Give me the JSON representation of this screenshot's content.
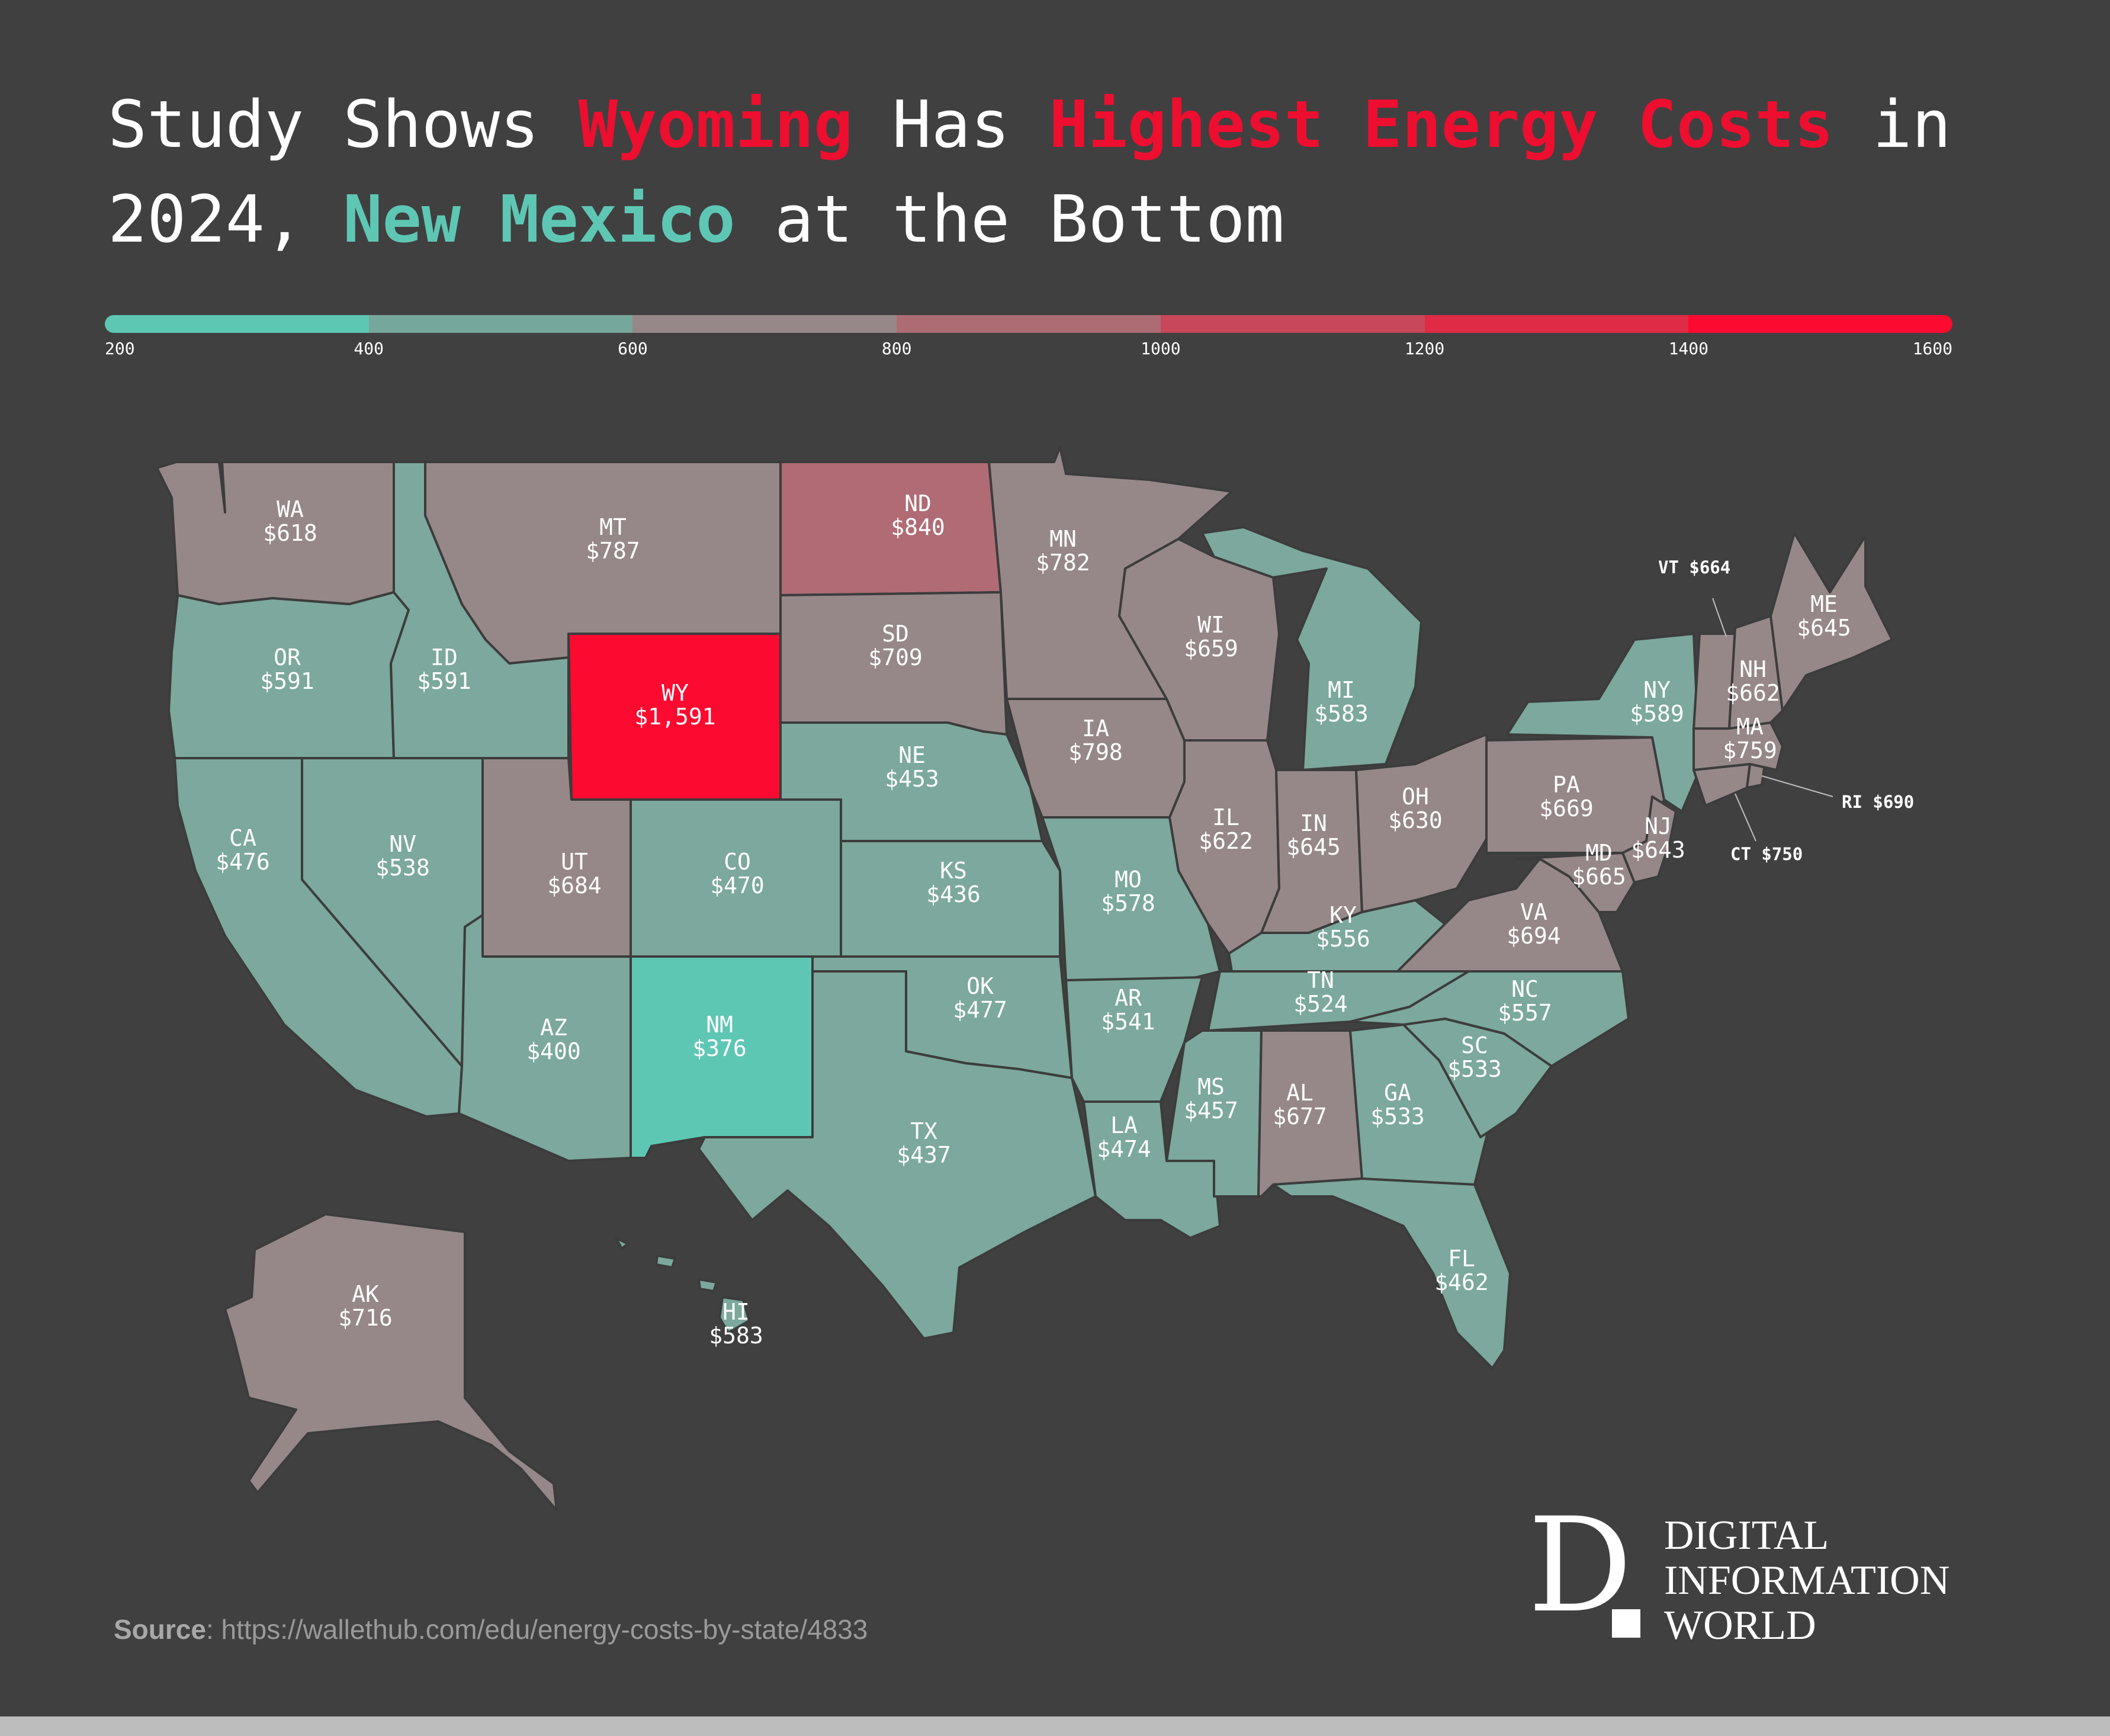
{
  "title": {
    "line1_a": "Study Shows ",
    "line1_b": "Wyoming",
    "line1_c": " Has ",
    "line1_d": "Highest Energy Costs",
    "line1_e": " in",
    "line2_a": "2024, ",
    "line2_b": "New Mexico",
    "line2_c": " at the Bottom"
  },
  "legend": {
    "ticks": [
      "200",
      "400",
      "600",
      "800",
      "1000",
      "1200",
      "1400",
      "1600"
    ],
    "colors": [
      "#5ec7b4",
      "#76a79c",
      "#968888",
      "#ad6b74",
      "#c8475a",
      "#df2b45",
      "#fc0a30"
    ]
  },
  "map": {
    "fill_colors": {
      "200-400": "#5ec7b4",
      "400-600": "#7ca89d",
      "600-800": "#968888",
      "800-1000": "#b06b74",
      "1400-1600": "#fc0a30"
    },
    "states": [
      {
        "code": "WA",
        "value": "$618"
      },
      {
        "code": "OR",
        "value": "$591"
      },
      {
        "code": "CA",
        "value": "$476"
      },
      {
        "code": "ID",
        "value": "$591"
      },
      {
        "code": "NV",
        "value": "$538"
      },
      {
        "code": "MT",
        "value": "$787"
      },
      {
        "code": "WY",
        "value": "$1,591"
      },
      {
        "code": "UT",
        "value": "$684"
      },
      {
        "code": "AZ",
        "value": "$400"
      },
      {
        "code": "CO",
        "value": "$470"
      },
      {
        "code": "NM",
        "value": "$376"
      },
      {
        "code": "ND",
        "value": "$840"
      },
      {
        "code": "SD",
        "value": "$709"
      },
      {
        "code": "NE",
        "value": "$453"
      },
      {
        "code": "KS",
        "value": "$436"
      },
      {
        "code": "OK",
        "value": "$477"
      },
      {
        "code": "TX",
        "value": "$437"
      },
      {
        "code": "MN",
        "value": "$782"
      },
      {
        "code": "IA",
        "value": "$798"
      },
      {
        "code": "MO",
        "value": "$578"
      },
      {
        "code": "AR",
        "value": "$541"
      },
      {
        "code": "LA",
        "value": "$474"
      },
      {
        "code": "WI",
        "value": "$659"
      },
      {
        "code": "IL",
        "value": "$622"
      },
      {
        "code": "MI",
        "value": "$583"
      },
      {
        "code": "IN",
        "value": "$645"
      },
      {
        "code": "OH",
        "value": "$630"
      },
      {
        "code": "KY",
        "value": "$556"
      },
      {
        "code": "TN",
        "value": "$524"
      },
      {
        "code": "MS",
        "value": "$457"
      },
      {
        "code": "AL",
        "value": "$677"
      },
      {
        "code": "GA",
        "value": "$533"
      },
      {
        "code": "FL",
        "value": "$462"
      },
      {
        "code": "SC",
        "value": "$533"
      },
      {
        "code": "NC",
        "value": "$557"
      },
      {
        "code": "VA",
        "value": "$694"
      },
      {
        "code": "MD",
        "value": "$665"
      },
      {
        "code": "PA",
        "value": "$669"
      },
      {
        "code": "NY",
        "value": "$589"
      },
      {
        "code": "NJ",
        "value": "$643"
      },
      {
        "code": "MA",
        "value": "$759"
      },
      {
        "code": "NH",
        "value": "$662"
      },
      {
        "code": "ME",
        "value": "$645"
      },
      {
        "code": "AK",
        "value": "$716"
      },
      {
        "code": "HI",
        "value": "$583"
      }
    ],
    "callouts": [
      {
        "code": "VT",
        "text": "VT $664"
      },
      {
        "code": "RI",
        "text": "RI $690"
      },
      {
        "code": "CT",
        "text": "CT $750"
      }
    ]
  },
  "source": {
    "label": "Source",
    "text": ": https://wallethub.com/edu/energy-costs-by-state/4833"
  },
  "logo": {
    "mark": "D",
    "line1": "DIGITAL",
    "line2": "INFORMATION",
    "line3": "WORLD"
  }
}
